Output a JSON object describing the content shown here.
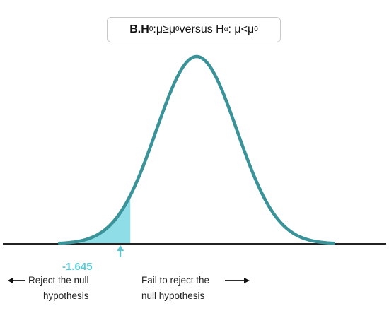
{
  "title": {
    "prefix": "B.",
    "h0_letter": "H",
    "h0_sub": "0",
    "h0_rel": ":μ≥μ",
    "h0_mu_sub": "0",
    "middle": " versus H",
    "ha_sub": "α",
    "ha_rel": ": μ<μ",
    "ha_mu_sub": "0"
  },
  "critical_value": {
    "label": "-1.645",
    "z": -1.645
  },
  "regions": {
    "reject": {
      "line1": "Reject the null",
      "line2": "hypothesis"
    },
    "fail": {
      "line1": "Fail to reject the",
      "line2": "null hypothesis"
    }
  },
  "colors": {
    "curve": "#3a9399",
    "shade": "#8fdde6",
    "critical": "#5bc8d4",
    "axis": "#222222",
    "arrow": "#111111"
  },
  "curve": {
    "distribution": "standard normal",
    "z_range": [
      -3.4,
      3.4
    ],
    "shaded_tail": "left"
  }
}
